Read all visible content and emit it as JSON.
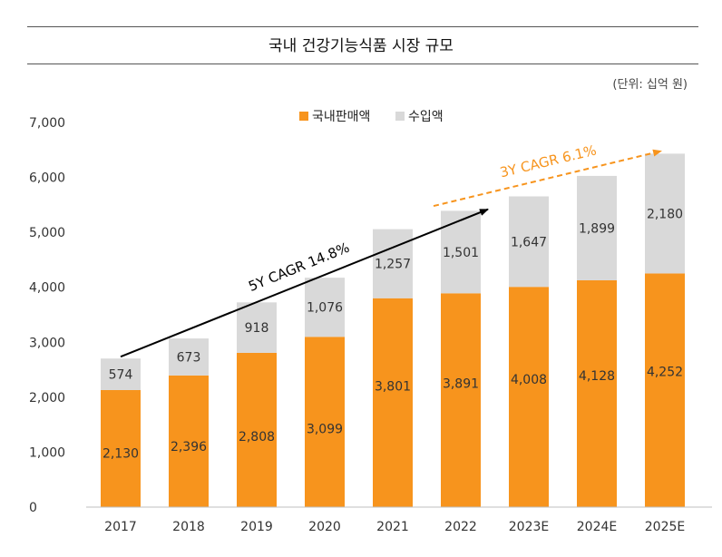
{
  "title": "국내 건강기능식품 시장 규모",
  "unit_note": "(단위: 십억 원)",
  "colors": {
    "domestic": "#f7941d",
    "import": "#d9d9d9",
    "arrow_hist": "#000000",
    "arrow_fcst": "#f7941d"
  },
  "annotations": {
    "hist_cagr": "5Y CAGR 14.8%",
    "fcst_cagr": "3Y CAGR 6.1%"
  },
  "chart_data": {
    "type": "bar",
    "stacked": true,
    "title": "국내 건강기능식품 시장 규모",
    "ylabel": "(단위: 십억 원)",
    "ylim": [
      0,
      7000
    ],
    "yticks": [
      0,
      1000,
      2000,
      3000,
      4000,
      5000,
      6000,
      7000
    ],
    "ytick_labels": [
      "0",
      "1,000",
      "2,000",
      "3,000",
      "4,000",
      "5,000",
      "6,000",
      "7,000"
    ],
    "categories": [
      "2017",
      "2018",
      "2019",
      "2020",
      "2021",
      "2022",
      "2023E",
      "2024E",
      "2025E"
    ],
    "legend_position": "top-center",
    "series": [
      {
        "name": "국내판매액",
        "values": [
          2130,
          2396,
          2808,
          3099,
          3801,
          3891,
          4008,
          4128,
          4252
        ],
        "labels": [
          "2,130",
          "2,396",
          "2,808",
          "3,099",
          "3,801",
          "3,891",
          "4,008",
          "4,128",
          "4,252"
        ]
      },
      {
        "name": "수입액",
        "values": [
          574,
          673,
          918,
          1076,
          1257,
          1501,
          1647,
          1899,
          2180
        ],
        "labels": [
          "574",
          "673",
          "918",
          "1,076",
          "1,257",
          "1,501",
          "1,647",
          "1,899",
          "2,180"
        ]
      }
    ]
  }
}
